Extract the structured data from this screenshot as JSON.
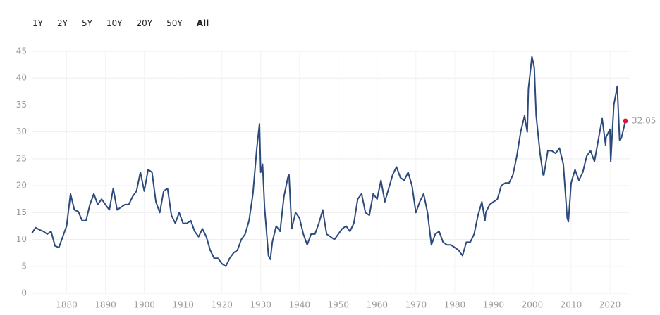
{
  "range_buttons": [
    "1Y",
    "2Y",
    "5Y",
    "10Y",
    "20Y",
    "50Y",
    "All"
  ],
  "active_button": 6,
  "chart_data": {
    "type": "line",
    "color": "#2c4a7c",
    "marker_color": "#e0153a",
    "grid": true,
    "xlim": [
      1871,
      2025
    ],
    "ylim": [
      0,
      45
    ],
    "xticks": [
      1880,
      1890,
      1900,
      1910,
      1920,
      1930,
      1940,
      1950,
      1960,
      1970,
      1980,
      1990,
      2000,
      2010,
      2020
    ],
    "yticks": [
      0,
      5,
      10,
      15,
      20,
      25,
      30,
      35,
      40,
      45
    ],
    "x": [
      1871,
      1872,
      1873,
      1874,
      1875,
      1876,
      1877,
      1878,
      1879,
      1880,
      1881,
      1882,
      1883,
      1884,
      1885,
      1886,
      1887,
      1888,
      1889,
      1890,
      1891,
      1892,
      1893,
      1894,
      1895,
      1896,
      1897,
      1898,
      1899,
      1900,
      1901,
      1902,
      1903,
      1904,
      1905,
      1906,
      1907,
      1908,
      1909,
      1910,
      1911,
      1912,
      1913,
      1914,
      1915,
      1916,
      1917,
      1918,
      1919,
      1920,
      1921,
      1922,
      1923,
      1924,
      1925,
      1926,
      1927,
      1928,
      1929,
      1929.7,
      1930,
      1930.5,
      1931,
      1932,
      1932.5,
      1933,
      1934,
      1935,
      1936,
      1937,
      1937.3,
      1938,
      1939,
      1940,
      1941,
      1942,
      1943,
      1944,
      1945,
      1946,
      1947,
      1948,
      1949,
      1950,
      1951,
      1952,
      1953,
      1954,
      1955,
      1956,
      1957,
      1958,
      1959,
      1960,
      1961,
      1962,
      1963,
      1964,
      1965,
      1966,
      1967,
      1968,
      1969,
      1970,
      1971,
      1972,
      1973,
      1974,
      1975,
      1976,
      1977,
      1978,
      1979,
      1980,
      1981,
      1982,
      1983,
      1984,
      1985,
      1986,
      1987,
      1987.8,
      1988,
      1989,
      1990,
      1991,
      1992,
      1993,
      1994,
      1995,
      1996,
      1997,
      1998,
      1998.7,
      1999,
      1999.9,
      2000.5,
      2001,
      2002,
      2002.8,
      2003,
      2004,
      2005,
      2006,
      2007,
      2008,
      2009,
      2009.3,
      2010,
      2011,
      2012,
      2013,
      2014,
      2015,
      2016,
      2017,
      2018,
      2018.9,
      2019,
      2020,
      2020.2,
      2021,
      2021.9,
      2022.5,
      2023,
      2023.5,
      2024
    ],
    "values": [
      11.1,
      12.2,
      11.8,
      11.5,
      11.0,
      11.5,
      8.8,
      8.5,
      10.5,
      12.5,
      18.5,
      15.5,
      15.2,
      13.5,
      13.5,
      16.5,
      18.5,
      16.5,
      17.5,
      16.5,
      15.5,
      19.5,
      15.5,
      16.0,
      16.5,
      16.5,
      18.0,
      19.0,
      22.5,
      19.0,
      23.0,
      22.5,
      17.0,
      15.0,
      19.0,
      19.5,
      14.5,
      13.0,
      15.0,
      13.0,
      13.0,
      13.5,
      11.5,
      10.5,
      12.0,
      10.5,
      8.0,
      6.5,
      6.5,
      5.5,
      5.0,
      6.5,
      7.5,
      8.0,
      10.0,
      11.0,
      13.5,
      18.5,
      27.0,
      31.5,
      22.5,
      24.0,
      16.0,
      7.0,
      6.3,
      9.5,
      12.5,
      11.5,
      18.0,
      21.5,
      22.0,
      12.0,
      15.0,
      14.0,
      11.0,
      9.0,
      11.0,
      11.0,
      13.0,
      15.5,
      11.0,
      10.5,
      10.0,
      11.0,
      12.0,
      12.5,
      11.5,
      13.0,
      17.5,
      18.5,
      15.0,
      14.5,
      18.5,
      17.5,
      21.0,
      17.0,
      19.5,
      22.0,
      23.5,
      21.5,
      21.0,
      22.5,
      20.0,
      15.0,
      17.0,
      18.5,
      15.0,
      9.0,
      11.0,
      11.5,
      9.5,
      9.0,
      9.0,
      8.5,
      8.0,
      7.0,
      9.5,
      9.5,
      11.0,
      14.5,
      17.0,
      13.5,
      15.0,
      16.5,
      17.0,
      17.5,
      20.0,
      20.5,
      20.5,
      22.0,
      25.5,
      30.0,
      33.0,
      30.0,
      38.0,
      44.0,
      42.0,
      33.0,
      26.0,
      22.0,
      22.0,
      26.5,
      26.5,
      26.0,
      27.0,
      24.0,
      14.0,
      13.3,
      20.5,
      23.0,
      21.0,
      22.5,
      25.5,
      26.5,
      24.5,
      28.5,
      32.5,
      27.5,
      29.0,
      30.5,
      24.5,
      35.0,
      38.5,
      28.5,
      29.0,
      30.5,
      32.05
    ],
    "last_label": "32.05"
  }
}
